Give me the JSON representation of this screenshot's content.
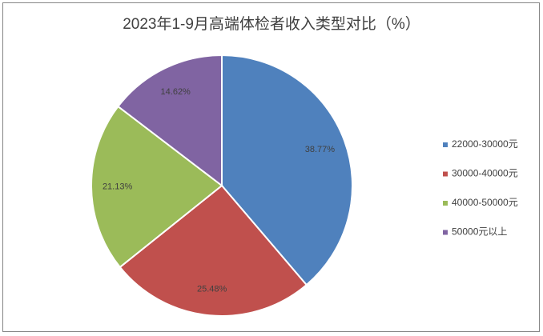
{
  "chart_data": {
    "type": "pie",
    "title": "2023年1-9月高端体检者收入类型对比（%）",
    "categories": [
      "22000-30000元",
      "30000-40000元",
      "40000-50000元",
      "50000元以上"
    ],
    "values": [
      38.77,
      25.48,
      21.13,
      14.62
    ],
    "value_labels": [
      "38.77%",
      "25.48%",
      "21.13%",
      "14.62%"
    ],
    "colors": [
      "#4f81bd",
      "#c0504d",
      "#9bbb59",
      "#8064a2"
    ],
    "legend": "right"
  }
}
